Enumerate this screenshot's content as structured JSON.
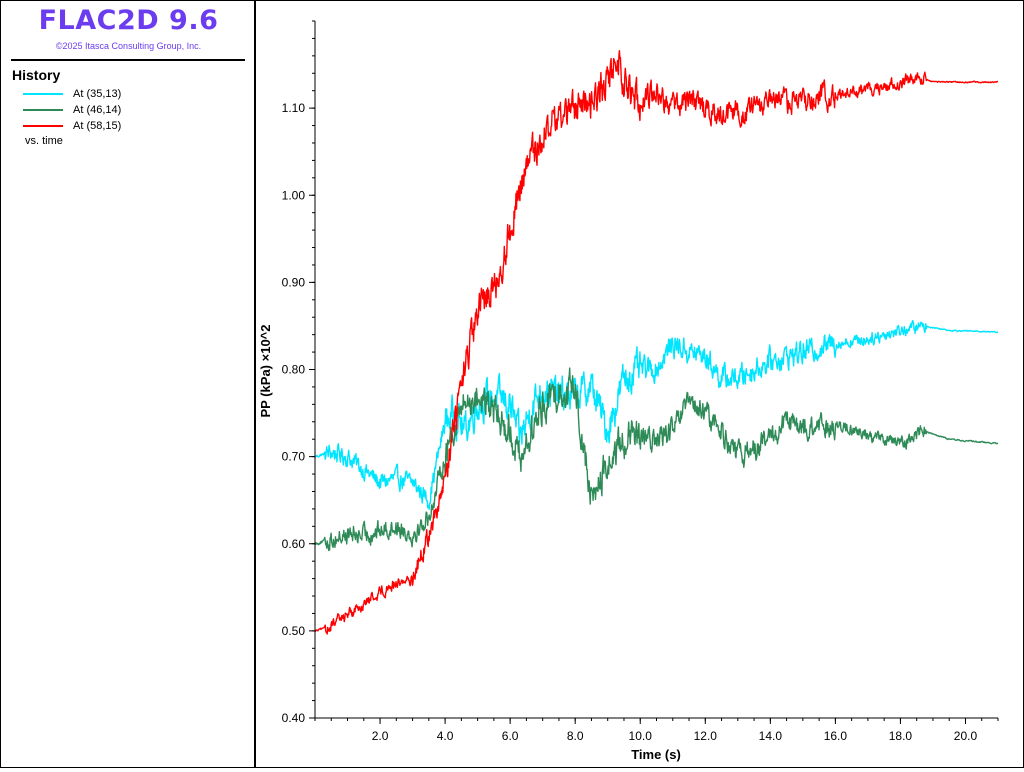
{
  "app": {
    "title": "FLAC2D 9.6",
    "copyright": "©2025 Itasca Consulting Group, Inc."
  },
  "legend": {
    "heading": "History",
    "items": [
      {
        "label": "At (35,13)",
        "color": "#00e5ff"
      },
      {
        "label": "At (46,14)",
        "color": "#2e8b57"
      },
      {
        "label": "At (58,15)",
        "color": "#ff0000"
      }
    ],
    "footer": "vs. time"
  },
  "chart_data": {
    "type": "line",
    "xlabel": "Time (s)",
    "ylabel": "PP (kPa) ×10^2",
    "xlim": [
      0,
      21
    ],
    "ylim": [
      0.4,
      1.2
    ],
    "xticks": [
      2.0,
      4.0,
      6.0,
      8.0,
      10.0,
      12.0,
      14.0,
      16.0,
      18.0,
      20.0
    ],
    "xtick_labels": [
      "2.0",
      "4.0",
      "6.0",
      "8.0",
      "10.0",
      "12.0",
      "14.0",
      "16.0",
      "18.0",
      "20.0"
    ],
    "yticks": [
      0.4,
      0.5,
      0.6,
      0.7,
      0.8,
      0.9,
      1.0,
      1.1
    ],
    "ytick_labels": [
      "0.40",
      "0.50",
      "0.60",
      "0.70",
      "0.80",
      "0.90",
      "1.00",
      "1.10"
    ],
    "grid": false,
    "series": [
      {
        "name": "At (35,13)",
        "color": "#00e5ff",
        "x": [
          0,
          0.5,
          1.0,
          1.5,
          2.0,
          2.5,
          3.0,
          3.5,
          4.0,
          4.3,
          4.6,
          5.0,
          5.5,
          6.0,
          6.3,
          6.7,
          7.0,
          7.5,
          8.0,
          8.5,
          9.0,
          9.5,
          10.0,
          10.5,
          11.0,
          11.5,
          12.0,
          12.5,
          13.0,
          13.5,
          14.0,
          15.0,
          16.0,
          17.0,
          18.0,
          18.7,
          19.5,
          21.0
        ],
        "y": [
          0.7,
          0.705,
          0.7,
          0.685,
          0.67,
          0.675,
          0.67,
          0.65,
          0.74,
          0.75,
          0.73,
          0.76,
          0.77,
          0.76,
          0.72,
          0.76,
          0.78,
          0.77,
          0.77,
          0.78,
          0.73,
          0.79,
          0.8,
          0.8,
          0.83,
          0.82,
          0.815,
          0.79,
          0.79,
          0.8,
          0.81,
          0.82,
          0.83,
          0.835,
          0.845,
          0.85,
          0.845,
          0.843
        ]
      },
      {
        "name": "At (46,14)",
        "color": "#2e8b57",
        "x": [
          0,
          0.5,
          1.0,
          1.5,
          2.0,
          2.5,
          3.0,
          3.5,
          4.0,
          4.3,
          4.6,
          5.0,
          5.5,
          6.0,
          6.3,
          6.7,
          7.0,
          7.5,
          8.0,
          8.3,
          8.5,
          9.0,
          9.5,
          10.0,
          10.5,
          11.0,
          11.5,
          12.0,
          12.5,
          13.0,
          13.5,
          14.0,
          14.5,
          15.0,
          16.0,
          17.0,
          18.0,
          18.7,
          19.5,
          21.0
        ],
        "y": [
          0.6,
          0.605,
          0.61,
          0.61,
          0.615,
          0.62,
          0.61,
          0.63,
          0.7,
          0.74,
          0.76,
          0.77,
          0.75,
          0.73,
          0.7,
          0.73,
          0.76,
          0.775,
          0.78,
          0.7,
          0.65,
          0.69,
          0.72,
          0.72,
          0.72,
          0.73,
          0.76,
          0.75,
          0.73,
          0.7,
          0.71,
          0.72,
          0.74,
          0.73,
          0.735,
          0.725,
          0.715,
          0.73,
          0.72,
          0.715
        ]
      },
      {
        "name": "At (58,15)",
        "color": "#ff0000",
        "x": [
          0,
          0.5,
          1.0,
          1.5,
          2.0,
          2.5,
          3.0,
          3.3,
          3.6,
          4.0,
          4.3,
          4.6,
          5.0,
          5.3,
          5.6,
          6.0,
          6.3,
          6.6,
          7.0,
          7.5,
          8.0,
          8.5,
          9.0,
          9.3,
          9.6,
          10.0,
          10.5,
          11.0,
          11.5,
          12.0,
          12.5,
          13.0,
          13.5,
          14.0,
          15.0,
          16.0,
          17.0,
          18.0,
          18.6,
          19.0,
          20.0,
          21.0
        ],
        "y": [
          0.5,
          0.505,
          0.52,
          0.53,
          0.545,
          0.555,
          0.56,
          0.59,
          0.62,
          0.67,
          0.74,
          0.8,
          0.86,
          0.89,
          0.9,
          0.96,
          1.01,
          1.04,
          1.07,
          1.09,
          1.1,
          1.11,
          1.13,
          1.16,
          1.12,
          1.11,
          1.12,
          1.1,
          1.11,
          1.1,
          1.09,
          1.095,
          1.1,
          1.105,
          1.11,
          1.115,
          1.12,
          1.13,
          1.135,
          1.13,
          1.13,
          1.13
        ]
      }
    ]
  }
}
